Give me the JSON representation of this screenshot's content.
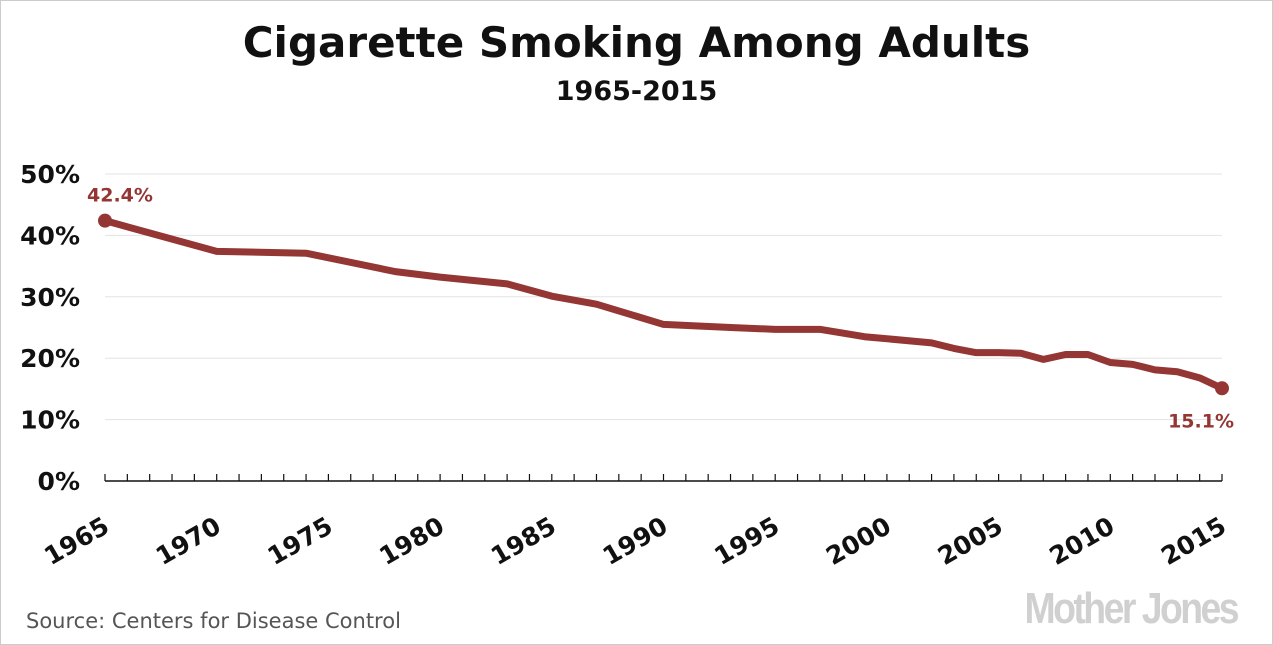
{
  "chart_data": {
    "type": "line",
    "title": "Cigarette Smoking Among Adults",
    "subtitle": "1965-2015",
    "xlabel": "",
    "ylabel": "",
    "xlim": [
      1965,
      2015
    ],
    "ylim": [
      0,
      50
    ],
    "x_ticks": [
      "1965",
      "1970",
      "1975",
      "1980",
      "1985",
      "1990",
      "1995",
      "2000",
      "2005",
      "2010",
      "2015"
    ],
    "y_ticks": [
      "0%",
      "10%",
      "20%",
      "30%",
      "40%",
      "50%"
    ],
    "grid": true,
    "line_color": "#943634",
    "series": [
      {
        "x": [
          1965,
          1970,
          1974,
          1978,
          1980,
          1983,
          1985,
          1987,
          1990,
          1993,
          1995,
          1997,
          1999,
          2002,
          2003,
          2004,
          2005,
          2006,
          2007,
          2008,
          2009,
          2010,
          2011,
          2012,
          2013,
          2014,
          2015
        ],
        "values": [
          42.4,
          37.4,
          37.1,
          34.1,
          33.2,
          32.1,
          30.1,
          28.8,
          25.5,
          25.0,
          24.7,
          24.7,
          23.5,
          22.5,
          21.6,
          20.9,
          20.9,
          20.8,
          19.8,
          20.6,
          20.6,
          19.3,
          19.0,
          18.1,
          17.8,
          16.8,
          15.1
        ]
      }
    ],
    "annotations": [
      {
        "x": 1965,
        "y": 42.4,
        "text": "42.4%"
      },
      {
        "x": 2015,
        "y": 15.1,
        "text": "15.1%"
      }
    ]
  },
  "source": "Source: Centers for Disease Control",
  "logo": "Mother Jones"
}
